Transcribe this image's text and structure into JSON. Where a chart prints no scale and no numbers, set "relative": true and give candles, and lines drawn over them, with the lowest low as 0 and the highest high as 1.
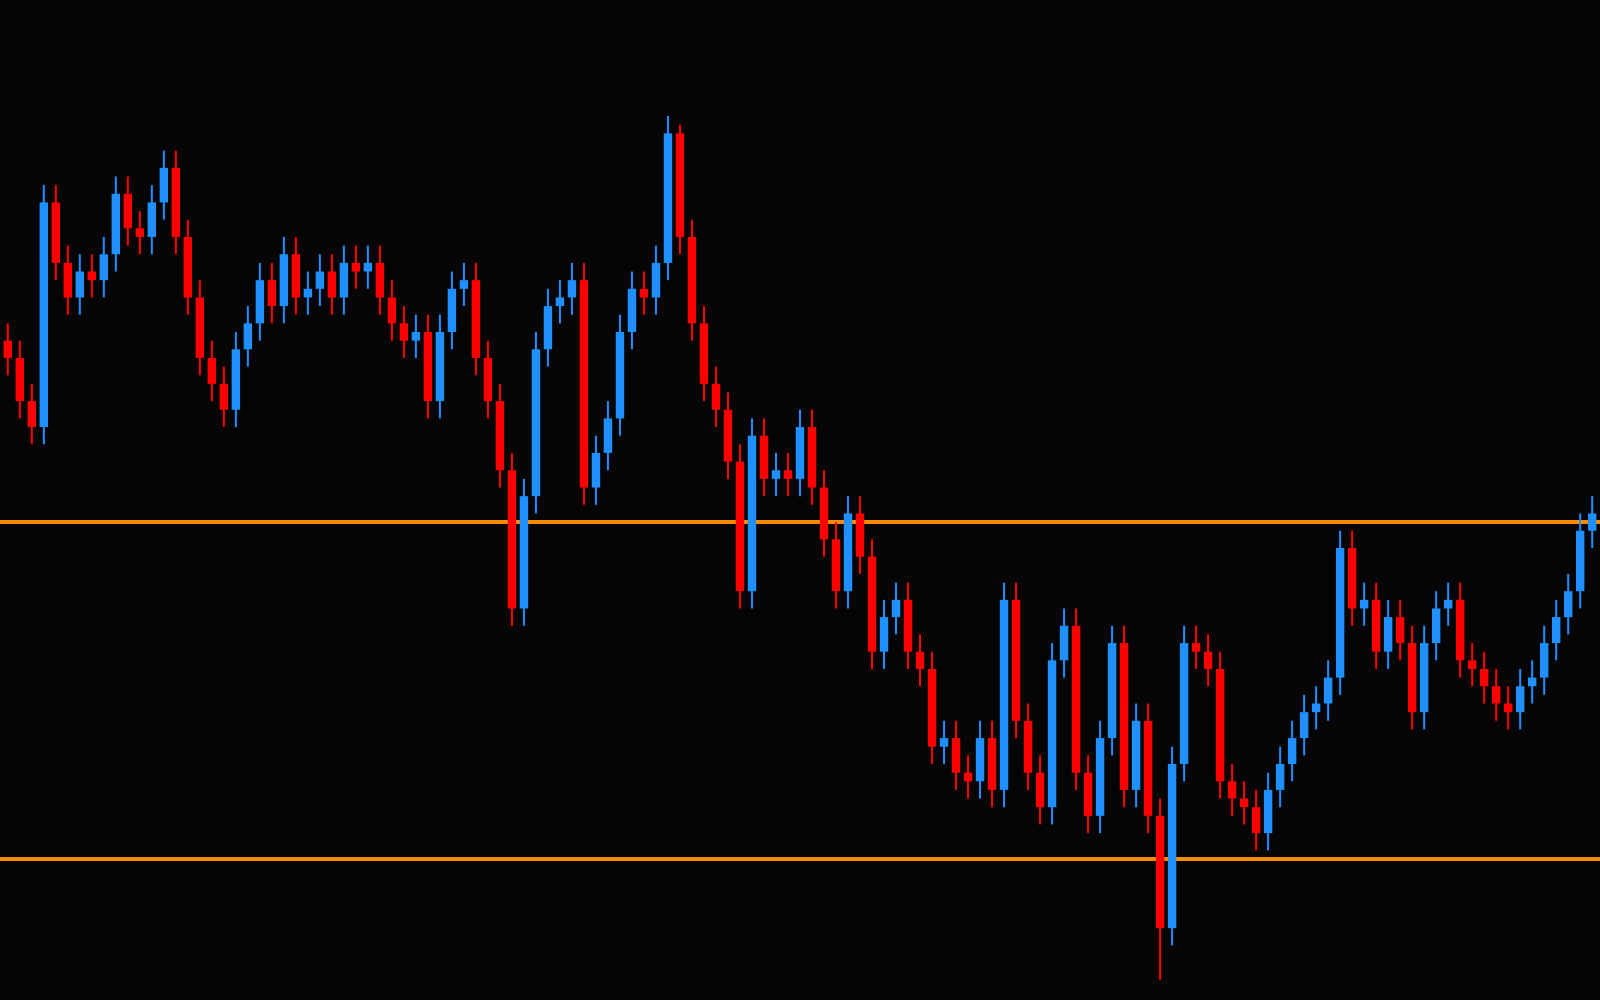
{
  "chart_data": {
    "type": "candlestick",
    "relative": true,
    "colors": [
      "#ff0000",
      "#ff0000",
      "#ff0000",
      "#1e90ff",
      "#ff0000",
      "#ff0000",
      "#1e90ff",
      "#ff0000",
      "#1e90ff",
      "#1e90ff",
      "#ff0000",
      "#ff0000",
      "#1e90ff",
      "#1e90ff",
      "#ff0000",
      "#ff0000",
      "#ff0000",
      "#ff0000",
      "#ff0000",
      "#1e90ff",
      "#1e90ff",
      "#1e90ff",
      "#ff0000",
      "#1e90ff",
      "#ff0000",
      "#1e90ff",
      "#1e90ff",
      "#ff0000",
      "#1e90ff",
      "#ff0000",
      "#1e90ff",
      "#ff0000",
      "#ff0000",
      "#ff0000",
      "#1e90ff",
      "#ff0000",
      "#1e90ff",
      "#1e90ff",
      "#1e90ff",
      "#ff0000",
      "#ff0000",
      "#ff0000",
      "#ff0000",
      "#1e90ff",
      "#1e90ff",
      "#1e90ff",
      "#1e90ff",
      "#1e90ff",
      "#ff0000",
      "#1e90ff",
      "#1e90ff",
      "#1e90ff",
      "#1e90ff",
      "#ff0000",
      "#1e90ff",
      "#1e90ff",
      "#ff0000",
      "#ff0000",
      "#ff0000",
      "#ff0000",
      "#ff0000",
      "#ff0000",
      "#1e90ff",
      "#ff0000",
      "#1e90ff",
      "#ff0000",
      "#1e90ff",
      "#ff0000",
      "#ff0000",
      "#ff0000",
      "#1e90ff",
      "#ff0000",
      "#ff0000",
      "#1e90ff",
      "#1e90ff",
      "#ff0000",
      "#ff0000",
      "#ff0000",
      "#1e90ff",
      "#ff0000",
      "#ff0000",
      "#1e90ff",
      "#ff0000",
      "#1e90ff",
      "#ff0000",
      "#ff0000",
      "#ff0000",
      "#1e90ff",
      "#1e90ff",
      "#ff0000",
      "#ff0000",
      "#1e90ff",
      "#1e90ff",
      "#ff0000",
      "#1e90ff",
      "#ff0000",
      "#ff0000",
      "#1e90ff",
      "#1e90ff",
      "#ff0000",
      "#ff0000",
      "#ff0000",
      "#ff0000",
      "#ff0000",
      "#ff0000",
      "#1e90ff",
      "#1e90ff",
      "#1e90ff",
      "#1e90ff",
      "#1e90ff",
      "#1e90ff",
      "#1e90ff",
      "#ff0000",
      "#1e90ff",
      "#ff0000",
      "#1e90ff",
      "#ff0000",
      "#ff0000",
      "#1e90ff",
      "#1e90ff",
      "#1e90ff",
      "#ff0000",
      "#ff0000",
      "#ff0000",
      "#ff0000",
      "#ff0000",
      "#1e90ff",
      "#1e90ff",
      "#1e90ff",
      "#1e90ff",
      "#1e90ff",
      "#1e90ff",
      "#1e90ff"
    ],
    "categories": [
      null,
      null,
      null,
      null,
      null,
      null,
      null,
      null,
      null,
      null,
      null,
      null,
      null,
      null,
      null,
      null,
      null,
      null,
      null,
      null,
      null,
      null,
      null,
      null,
      null,
      null,
      null,
      null,
      null,
      null,
      null,
      null,
      null,
      null,
      null,
      null,
      null,
      null,
      null,
      null,
      null,
      null,
      null,
      null,
      null,
      null,
      null,
      null,
      null,
      null,
      null,
      null,
      null,
      null,
      null,
      null,
      null,
      null,
      null,
      null,
      null,
      null,
      null,
      null,
      null,
      null,
      null,
      null,
      null,
      null,
      null,
      null,
      null,
      null,
      null,
      null,
      null,
      null,
      null,
      null,
      null,
      null,
      null,
      null,
      null,
      null,
      null,
      null,
      null,
      null,
      null,
      null,
      null,
      null,
      null,
      null,
      null,
      null,
      null,
      null,
      null,
      null,
      null,
      null,
      null,
      null,
      null,
      null,
      null,
      null,
      null,
      null,
      null,
      null,
      null,
      null,
      null,
      null,
      null,
      null,
      null,
      null,
      null,
      null,
      null,
      null,
      null,
      null,
      null,
      null,
      null,
      null,
      null
    ],
    "ohlc": [
      [
        0.74,
        0.76,
        0.7,
        0.72
      ],
      [
        0.72,
        0.74,
        0.65,
        0.67
      ],
      [
        0.67,
        0.69,
        0.62,
        0.64
      ],
      [
        0.64,
        0.92,
        0.62,
        0.9
      ],
      [
        0.9,
        0.92,
        0.81,
        0.83
      ],
      [
        0.83,
        0.85,
        0.77,
        0.79
      ],
      [
        0.79,
        0.84,
        0.77,
        0.82
      ],
      [
        0.82,
        0.84,
        0.79,
        0.81
      ],
      [
        0.81,
        0.86,
        0.79,
        0.84
      ],
      [
        0.84,
        0.93,
        0.82,
        0.91
      ],
      [
        0.91,
        0.93,
        0.85,
        0.87
      ],
      [
        0.87,
        0.89,
        0.84,
        0.86
      ],
      [
        0.86,
        0.92,
        0.84,
        0.9
      ],
      [
        0.9,
        0.96,
        0.88,
        0.94
      ],
      [
        0.94,
        0.96,
        0.84,
        0.86
      ],
      [
        0.86,
        0.88,
        0.77,
        0.79
      ],
      [
        0.79,
        0.81,
        0.7,
        0.72
      ],
      [
        0.72,
        0.74,
        0.67,
        0.69
      ],
      [
        0.69,
        0.71,
        0.64,
        0.66
      ],
      [
        0.66,
        0.75,
        0.64,
        0.73
      ],
      [
        0.73,
        0.78,
        0.71,
        0.76
      ],
      [
        0.76,
        0.83,
        0.74,
        0.81
      ],
      [
        0.81,
        0.83,
        0.76,
        0.78
      ],
      [
        0.78,
        0.86,
        0.76,
        0.84
      ],
      [
        0.84,
        0.86,
        0.77,
        0.79
      ],
      [
        0.79,
        0.82,
        0.77,
        0.8
      ],
      [
        0.8,
        0.84,
        0.78,
        0.82
      ],
      [
        0.82,
        0.84,
        0.77,
        0.79
      ],
      [
        0.79,
        0.85,
        0.77,
        0.83
      ],
      [
        0.83,
        0.85,
        0.8,
        0.82
      ],
      [
        0.82,
        0.85,
        0.8,
        0.83
      ],
      [
        0.83,
        0.85,
        0.77,
        0.79
      ],
      [
        0.79,
        0.81,
        0.74,
        0.76
      ],
      [
        0.76,
        0.78,
        0.72,
        0.74
      ],
      [
        0.74,
        0.77,
        0.72,
        0.75
      ],
      [
        0.75,
        0.77,
        0.65,
        0.67
      ],
      [
        0.67,
        0.77,
        0.65,
        0.75
      ],
      [
        0.75,
        0.82,
        0.73,
        0.8
      ],
      [
        0.8,
        0.83,
        0.78,
        0.81
      ],
      [
        0.81,
        0.83,
        0.7,
        0.72
      ],
      [
        0.72,
        0.74,
        0.65,
        0.67
      ],
      [
        0.67,
        0.69,
        0.57,
        0.59
      ],
      [
        0.59,
        0.61,
        0.41,
        0.43
      ],
      [
        0.43,
        0.58,
        0.41,
        0.56
      ],
      [
        0.56,
        0.75,
        0.54,
        0.73
      ],
      [
        0.73,
        0.8,
        0.71,
        0.78
      ],
      [
        0.78,
        0.81,
        0.76,
        0.79
      ],
      [
        0.79,
        0.83,
        0.77,
        0.81
      ],
      [
        0.81,
        0.83,
        0.55,
        0.57
      ],
      [
        0.57,
        0.63,
        0.55,
        0.61
      ],
      [
        0.61,
        0.67,
        0.59,
        0.65
      ],
      [
        0.65,
        0.77,
        0.63,
        0.75
      ],
      [
        0.75,
        0.82,
        0.73,
        0.8
      ],
      [
        0.8,
        0.82,
        0.77,
        0.79
      ],
      [
        0.79,
        0.85,
        0.77,
        0.83
      ],
      [
        0.83,
        1,
        0.81,
        0.98
      ],
      [
        0.98,
        0.99,
        0.84,
        0.86
      ],
      [
        0.86,
        0.88,
        0.74,
        0.76
      ],
      [
        0.76,
        0.78,
        0.67,
        0.69
      ],
      [
        0.69,
        0.71,
        0.64,
        0.66
      ],
      [
        0.66,
        0.68,
        0.58,
        0.6
      ],
      [
        0.6,
        0.62,
        0.43,
        0.45
      ],
      [
        0.45,
        0.65,
        0.43,
        0.63
      ],
      [
        0.63,
        0.65,
        0.56,
        0.58
      ],
      [
        0.58,
        0.61,
        0.56,
        0.59
      ],
      [
        0.59,
        0.61,
        0.56,
        0.58
      ],
      [
        0.58,
        0.66,
        0.56,
        0.64
      ],
      [
        0.64,
        0.66,
        0.55,
        0.57
      ],
      [
        0.57,
        0.59,
        0.49,
        0.51
      ],
      [
        0.51,
        0.53,
        0.43,
        0.45
      ],
      [
        0.45,
        0.56,
        0.43,
        0.54
      ],
      [
        0.54,
        0.56,
        0.47,
        0.49
      ],
      [
        0.49,
        0.51,
        0.36,
        0.38
      ],
      [
        0.38,
        0.44,
        0.36,
        0.42
      ],
      [
        0.42,
        0.46,
        0.4,
        0.44
      ],
      [
        0.44,
        0.46,
        0.36,
        0.38
      ],
      [
        0.38,
        0.4,
        0.34,
        0.36
      ],
      [
        0.36,
        0.38,
        0.25,
        0.27
      ],
      [
        0.27,
        0.3,
        0.25,
        0.28
      ],
      [
        0.28,
        0.3,
        0.22,
        0.24
      ],
      [
        0.24,
        0.26,
        0.21,
        0.23
      ],
      [
        0.23,
        0.3,
        0.21,
        0.28
      ],
      [
        0.28,
        0.3,
        0.2,
        0.22
      ],
      [
        0.22,
        0.46,
        0.2,
        0.44
      ],
      [
        0.44,
        0.46,
        0.28,
        0.3
      ],
      [
        0.3,
        0.32,
        0.22,
        0.24
      ],
      [
        0.24,
        0.26,
        0.18,
        0.2
      ],
      [
        0.2,
        0.39,
        0.18,
        0.37
      ],
      [
        0.37,
        0.43,
        0.35,
        0.41
      ],
      [
        0.41,
        0.43,
        0.22,
        0.24
      ],
      [
        0.24,
        0.26,
        0.17,
        0.19
      ],
      [
        0.19,
        0.3,
        0.17,
        0.28
      ],
      [
        0.28,
        0.41,
        0.26,
        0.39
      ],
      [
        0.39,
        0.41,
        0.2,
        0.22
      ],
      [
        0.22,
        0.32,
        0.2,
        0.3
      ],
      [
        0.3,
        0.32,
        0.17,
        0.19
      ],
      [
        0.19,
        0.21,
        0,
        0.06
      ],
      [
        0.06,
        0.27,
        0.04,
        0.25
      ],
      [
        0.25,
        0.41,
        0.23,
        0.39
      ],
      [
        0.39,
        0.41,
        0.36,
        0.38
      ],
      [
        0.38,
        0.4,
        0.34,
        0.36
      ],
      [
        0.36,
        0.38,
        0.21,
        0.23
      ],
      [
        0.23,
        0.25,
        0.19,
        0.21
      ],
      [
        0.21,
        0.23,
        0.18,
        0.2
      ],
      [
        0.2,
        0.22,
        0.15,
        0.17
      ],
      [
        0.17,
        0.24,
        0.15,
        0.22
      ],
      [
        0.22,
        0.27,
        0.2,
        0.25
      ],
      [
        0.25,
        0.3,
        0.23,
        0.28
      ],
      [
        0.28,
        0.33,
        0.26,
        0.31
      ],
      [
        0.31,
        0.34,
        0.29,
        0.32
      ],
      [
        0.32,
        0.37,
        0.3,
        0.35
      ],
      [
        0.35,
        0.52,
        0.33,
        0.5
      ],
      [
        0.5,
        0.52,
        0.41,
        0.43
      ],
      [
        0.43,
        0.46,
        0.41,
        0.44
      ],
      [
        0.44,
        0.46,
        0.36,
        0.38
      ],
      [
        0.38,
        0.44,
        0.36,
        0.42
      ],
      [
        0.42,
        0.44,
        0.37,
        0.39
      ],
      [
        0.39,
        0.41,
        0.29,
        0.31
      ],
      [
        0.31,
        0.41,
        0.29,
        0.39
      ],
      [
        0.39,
        0.45,
        0.37,
        0.43
      ],
      [
        0.43,
        0.46,
        0.41,
        0.44
      ],
      [
        0.44,
        0.46,
        0.35,
        0.37
      ],
      [
        0.37,
        0.39,
        0.34,
        0.36
      ],
      [
        0.36,
        0.38,
        0.32,
        0.34
      ],
      [
        0.34,
        0.36,
        0.3,
        0.32
      ],
      [
        0.32,
        0.34,
        0.29,
        0.31
      ],
      [
        0.31,
        0.36,
        0.29,
        0.34
      ],
      [
        0.34,
        0.37,
        0.32,
        0.35
      ],
      [
        0.35,
        0.41,
        0.33,
        0.39
      ],
      [
        0.39,
        0.44,
        0.37,
        0.42
      ],
      [
        0.42,
        0.47,
        0.4,
        0.45
      ],
      [
        0.45,
        0.54,
        0.43,
        0.52
      ],
      [
        0.52,
        0.56,
        0.5,
        0.54
      ]
    ],
    "ref_lines": [
      {
        "axis": "y",
        "value": 0.53,
        "color": "#ff8c00"
      },
      {
        "axis": "y",
        "value": 0.14,
        "color": "#ff8c00"
      }
    ]
  }
}
